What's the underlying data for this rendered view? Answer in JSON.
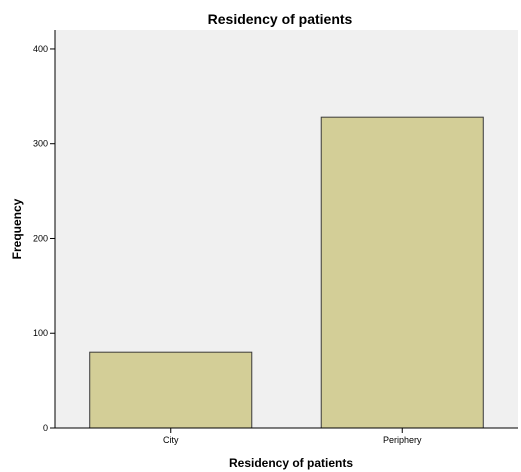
{
  "chart_data": {
    "type": "bar",
    "title": "Residency of patients",
    "xlabel": "Residency of patients",
    "ylabel": "Frequency",
    "categories": [
      "City",
      "Periphery"
    ],
    "values": [
      80,
      328
    ],
    "ylim": [
      0,
      420
    ],
    "yticks": [
      0,
      100,
      200,
      300,
      400
    ],
    "grid": false,
    "legend": "none",
    "colors": {
      "bar_fill": "#d3ce97",
      "bar_stroke": "#3a3a3a",
      "plot_background": "#f0f0f0",
      "axis": "#000000"
    }
  }
}
